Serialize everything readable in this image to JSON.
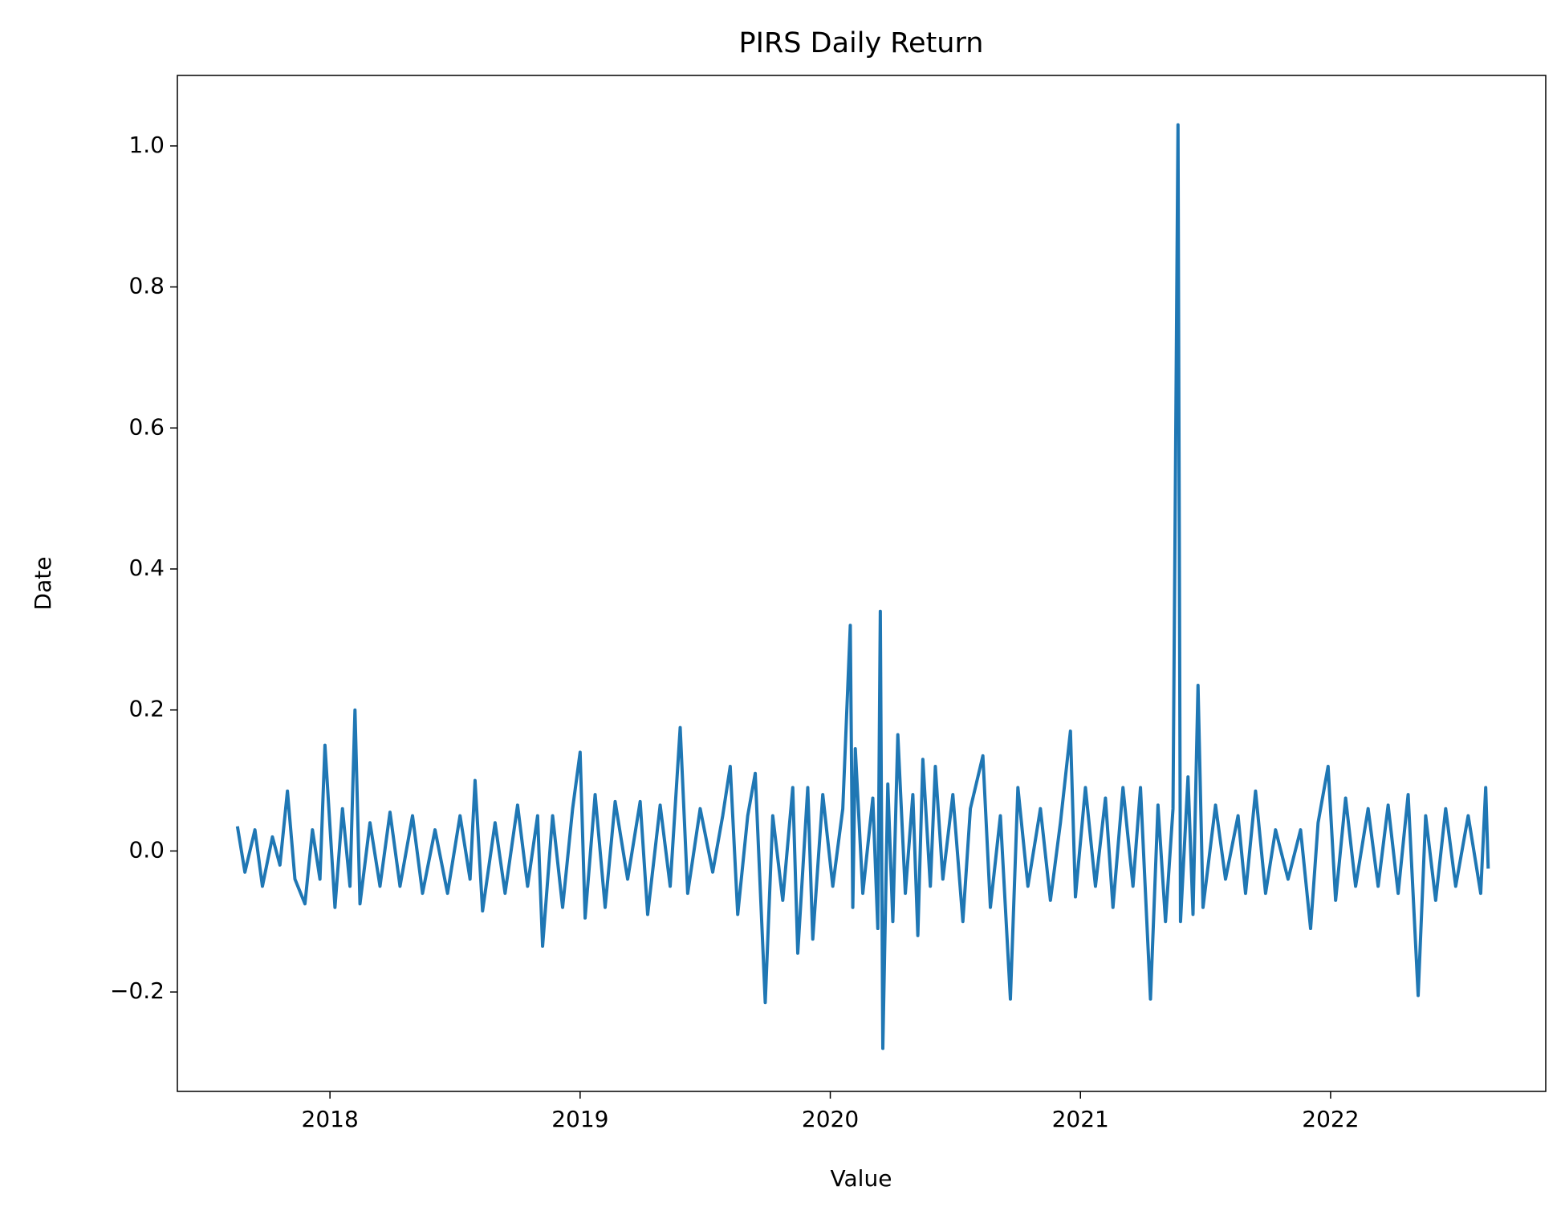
{
  "chart_data": {
    "type": "line",
    "title": "PIRS Daily Return",
    "x_label": "Value",
    "y_label": "Date",
    "x": [
      2017.63,
      2017.66,
      2017.7,
      2017.73,
      2017.77,
      2017.8,
      2017.83,
      2017.86,
      2017.9,
      2017.93,
      2017.96,
      2017.98,
      2018.02,
      2018.05,
      2018.08,
      2018.1,
      2018.12,
      2018.16,
      2018.2,
      2018.24,
      2018.28,
      2018.33,
      2018.37,
      2018.42,
      2018.47,
      2018.52,
      2018.56,
      2018.58,
      2018.61,
      2018.66,
      2018.7,
      2018.75,
      2018.79,
      2018.83,
      2018.85,
      2018.89,
      2018.93,
      2018.97,
      2019.0,
      2019.02,
      2019.06,
      2019.1,
      2019.14,
      2019.19,
      2019.24,
      2019.27,
      2019.32,
      2019.36,
      2019.4,
      2019.43,
      2019.48,
      2019.53,
      2019.57,
      2019.6,
      2019.63,
      2019.67,
      2019.7,
      2019.74,
      2019.77,
      2019.81,
      2019.85,
      2019.87,
      2019.91,
      2019.93,
      2019.97,
      2020.01,
      2020.05,
      2020.08,
      2020.09,
      2020.1,
      2020.13,
      2020.17,
      2020.19,
      2020.2,
      2020.21,
      2020.23,
      2020.25,
      2020.27,
      2020.3,
      2020.33,
      2020.35,
      2020.37,
      2020.4,
      2020.42,
      2020.45,
      2020.49,
      2020.53,
      2020.56,
      2020.61,
      2020.64,
      2020.68,
      2020.72,
      2020.75,
      2020.79,
      2020.84,
      2020.88,
      2020.92,
      2020.96,
      2020.98,
      2021.02,
      2021.06,
      2021.1,
      2021.13,
      2021.17,
      2021.21,
      2021.24,
      2021.28,
      2021.31,
      2021.34,
      2021.37,
      2021.39,
      2021.4,
      2021.43,
      2021.45,
      2021.47,
      2021.49,
      2021.54,
      2021.58,
      2021.63,
      2021.66,
      2021.7,
      2021.74,
      2021.78,
      2021.83,
      2021.88,
      2021.92,
      2021.95,
      2021.99,
      2022.02,
      2022.06,
      2022.1,
      2022.15,
      2022.19,
      2022.23,
      2022.27,
      2022.31,
      2022.35,
      2022.38,
      2022.42,
      2022.46,
      2022.5,
      2022.55,
      2022.6,
      2022.62,
      2022.63
    ],
    "series": [
      {
        "color": "#1f77b4",
        "values": [
          0.035,
          -0.03,
          0.03,
          -0.05,
          0.02,
          -0.02,
          0.085,
          -0.04,
          -0.075,
          0.03,
          -0.04,
          0.15,
          -0.08,
          0.06,
          -0.05,
          0.2,
          -0.075,
          0.04,
          -0.05,
          0.055,
          -0.05,
          0.05,
          -0.06,
          0.03,
          -0.06,
          0.05,
          -0.04,
          0.1,
          -0.085,
          0.04,
          -0.06,
          0.065,
          -0.05,
          0.05,
          -0.135,
          0.05,
          -0.08,
          0.06,
          0.14,
          -0.095,
          0.08,
          -0.08,
          0.07,
          -0.04,
          0.07,
          -0.09,
          0.065,
          -0.05,
          0.175,
          -0.06,
          0.06,
          -0.03,
          0.05,
          0.12,
          -0.09,
          0.05,
          0.11,
          -0.215,
          0.05,
          -0.07,
          0.09,
          -0.145,
          0.09,
          -0.125,
          0.08,
          -0.05,
          0.06,
          0.32,
          -0.08,
          0.145,
          -0.06,
          0.075,
          -0.11,
          0.34,
          -0.28,
          0.095,
          -0.1,
          0.165,
          -0.06,
          0.08,
          -0.12,
          0.13,
          -0.05,
          0.12,
          -0.04,
          0.08,
          -0.1,
          0.06,
          0.135,
          -0.08,
          0.05,
          -0.21,
          0.09,
          -0.05,
          0.06,
          -0.07,
          0.04,
          0.17,
          -0.065,
          0.09,
          -0.05,
          0.075,
          -0.08,
          0.09,
          -0.05,
          0.09,
          -0.21,
          0.065,
          -0.1,
          0.06,
          1.03,
          -0.1,
          0.105,
          -0.09,
          0.235,
          -0.08,
          0.065,
          -0.04,
          0.05,
          -0.06,
          0.085,
          -0.06,
          0.03,
          -0.04,
          0.03,
          -0.11,
          0.04,
          0.12,
          -0.07,
          0.075,
          -0.05,
          0.06,
          -0.05,
          0.065,
          -0.06,
          0.08,
          -0.205,
          0.05,
          -0.07,
          0.06,
          -0.05,
          0.05,
          -0.06,
          0.09,
          -0.025
        ]
      }
    ],
    "xlim": [
      2017.39,
      2022.86
    ],
    "xticks": [
      2018,
      2019,
      2020,
      2021,
      2022
    ],
    "ylim": [
      -0.341,
      1.1
    ],
    "yticks": [
      {
        "value": -0.2,
        "label": "−0.2"
      },
      {
        "value": 0,
        "label": "0.0"
      },
      0.2,
      0.4,
      0.6,
      0.8,
      {
        "value": 1,
        "label": "1.0"
      }
    ]
  }
}
